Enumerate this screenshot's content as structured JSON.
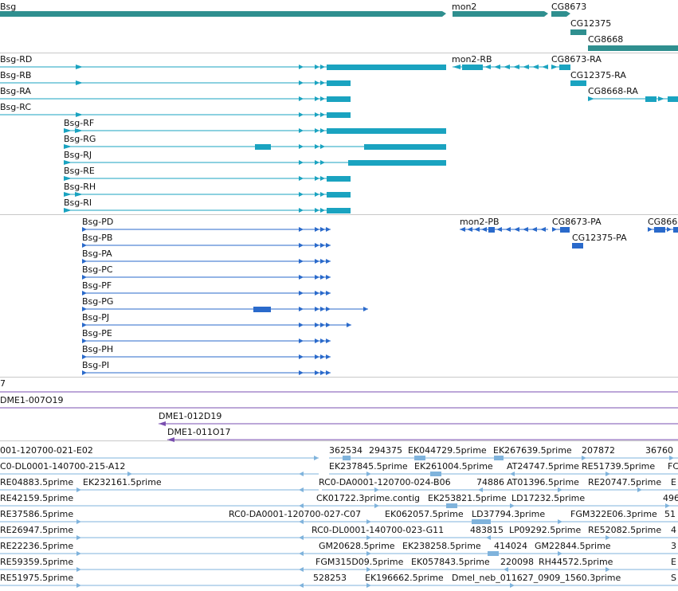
{
  "colors": {
    "gene": "#2f8f8f",
    "transcript": "#1aa3c0",
    "protein": "#2a6acb",
    "clone": "#7a4fb0",
    "est": "#7fb3dc",
    "separator": "#c8c8c8",
    "text": "#111111"
  },
  "genes": {
    "bsg": "Bsg",
    "mon2": "mon2",
    "cg8673": "CG8673",
    "cg12375": "CG12375",
    "cg8668": "CG8668"
  },
  "transcripts": {
    "bsg_rd": "Bsg-RD",
    "bsg_rb": "Bsg-RB",
    "bsg_ra": "Bsg-RA",
    "bsg_rc": "Bsg-RC",
    "bsg_rf": "Bsg-RF",
    "bsg_rg": "Bsg-RG",
    "bsg_rj": "Bsg-RJ",
    "bsg_re": "Bsg-RE",
    "bsg_rh": "Bsg-RH",
    "bsg_ri": "Bsg-RI",
    "mon2_rb": "mon2-RB",
    "cg8673_ra": "CG8673-RA",
    "cg12375_ra": "CG12375-RA",
    "cg8668_ra": "CG8668-RA"
  },
  "proteins": {
    "bsg_pd": "Bsg-PD",
    "bsg_pb": "Bsg-PB",
    "bsg_pa": "Bsg-PA",
    "bsg_pc": "Bsg-PC",
    "bsg_pf": "Bsg-PF",
    "bsg_pg": "Bsg-PG",
    "bsg_pj": "Bsg-PJ",
    "bsg_pe": "Bsg-PE",
    "bsg_ph": "Bsg-PH",
    "bsg_pi": "Bsg-PI",
    "mon2_pb": "mon2-PB",
    "cg8673_pa": "CG8673-PA",
    "cg12375_pa": "CG12375-PA",
    "cg866x": "CG866"
  },
  "clones": {
    "c7": "7",
    "dme1_007o19": "DME1-007O19",
    "dme1_012d19": "DME1-012D19",
    "dme1_011o17": "DME1-011O17"
  },
  "ests": [
    [
      "001-120700-021-E02",
      "362534",
      "294375",
      "EK044729.5prime",
      "EK267639.5prime",
      "207872",
      "36760"
    ],
    [
      "C0-DL0001-140700-215-A12",
      "EK237845.5prime",
      "EK261004.5prime",
      "AT24747.5prime",
      "RE51739.5prime",
      "FC"
    ],
    [
      "RE04883.5prime",
      "EK232161.5prime",
      "RC0-DA0001-120700-024-B06",
      "74886",
      "AT01396.5prime",
      "RE20747.5prime",
      "E"
    ],
    [
      "RE42159.5prime",
      "CK01722.3prime.contig",
      "EK253821.5prime",
      "LD17232.5prime",
      "496"
    ],
    [
      "RE37586.5prime",
      "RC0-DA0001-120700-027-C07",
      "EK062057.5prime",
      "LD37794.3prime",
      "FGM322E06.3prime",
      "51"
    ],
    [
      "RE26947.5prime",
      "RC0-DL0001-140700-023-G11",
      "483815",
      "LP09292.5prime",
      "RE52082.5prime",
      "4"
    ],
    [
      "RE22236.5prime",
      "GM20628.5prime",
      "EK238258.5prime",
      "414024",
      "GM22844.5prime",
      "3"
    ],
    [
      "RE59359.5prime",
      "FGM315D09.5prime",
      "EK057843.5prime",
      "220098",
      "RH44572.5prime",
      "E"
    ],
    [
      "RE51975.5prime",
      "528253",
      "EK196662.5prime",
      "Dmel_neb_011627_0909_1560.3prime",
      "S"
    ]
  ]
}
